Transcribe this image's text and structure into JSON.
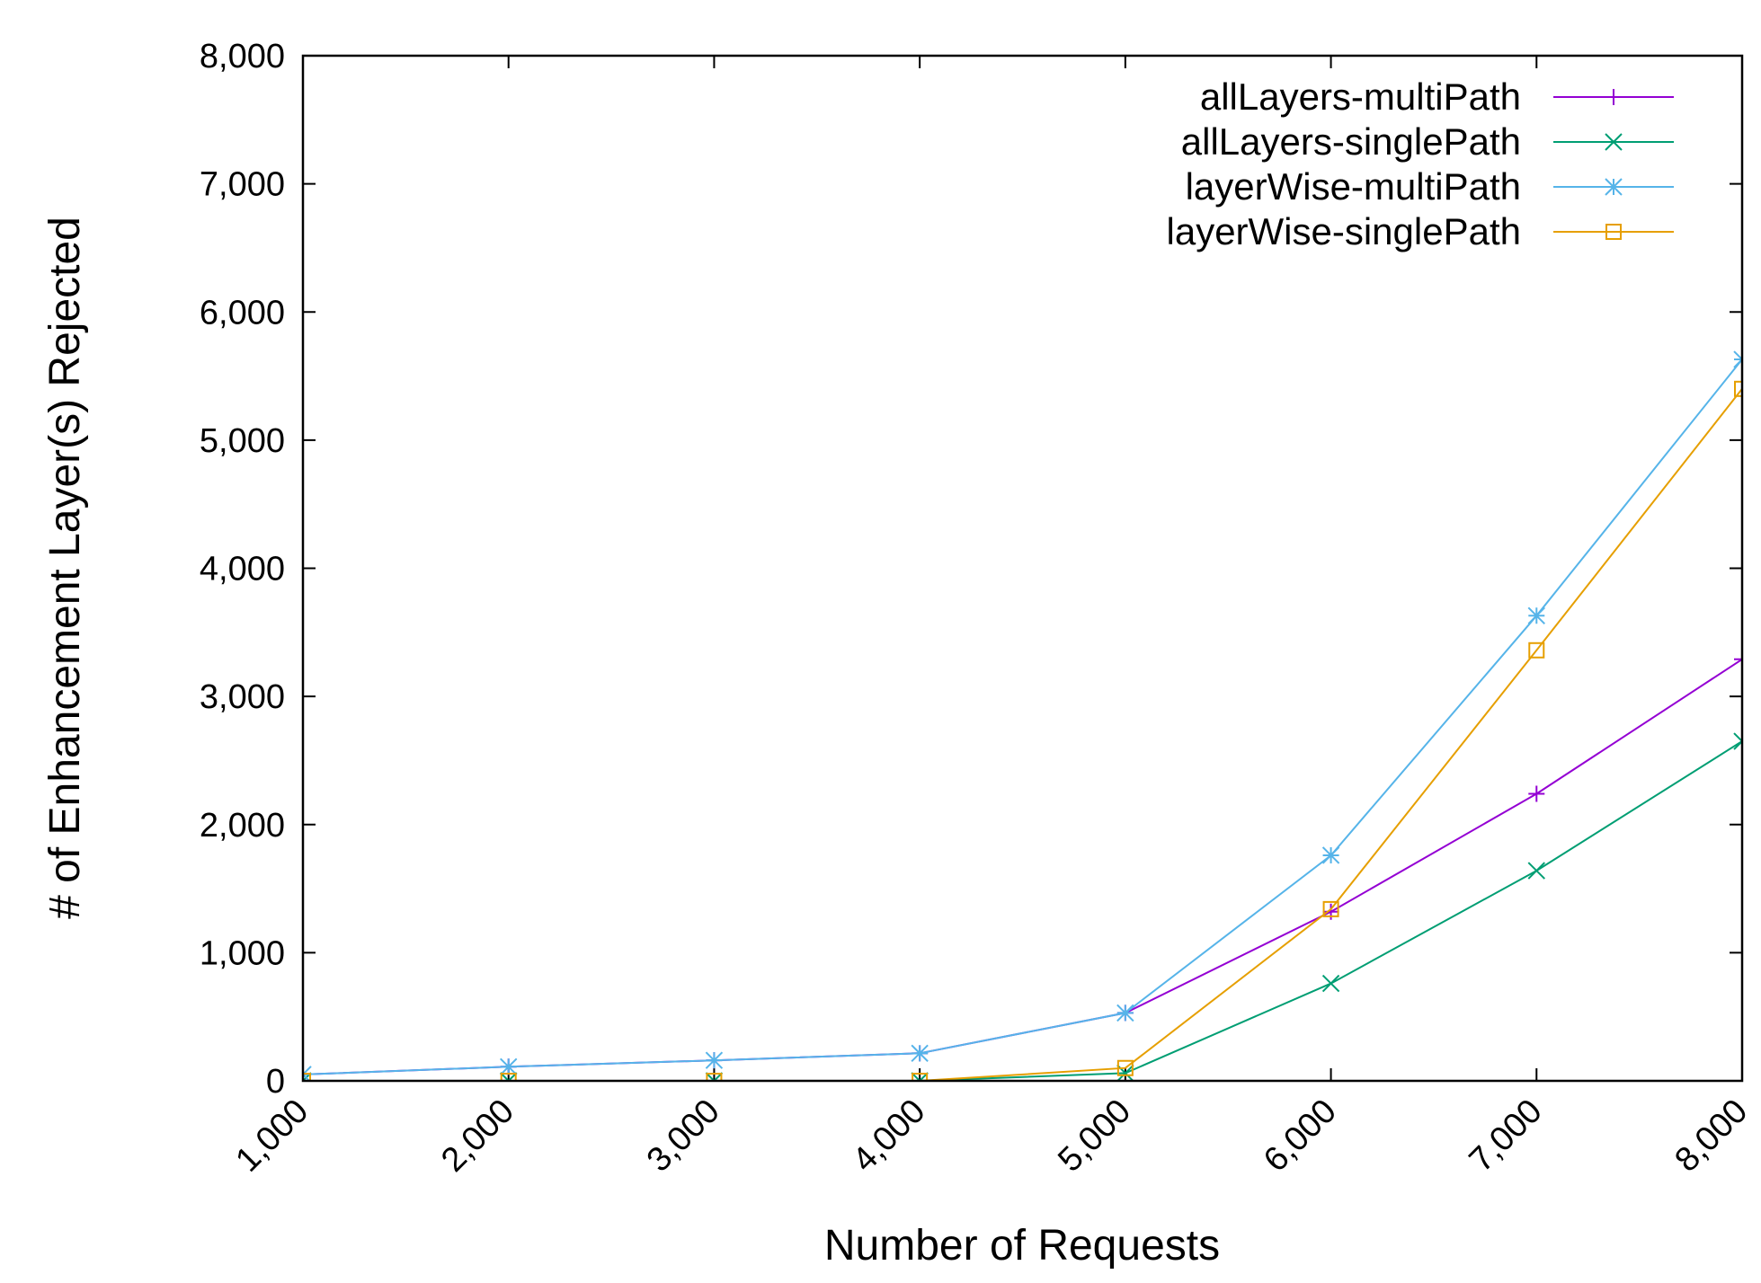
{
  "chart_data": {
    "type": "line",
    "xlabel": "Number of Requests",
    "ylabel": "# of Enhancement Layer(s) Rejected",
    "xlim": [
      1000,
      8000
    ],
    "ylim": [
      0,
      8000
    ],
    "x": [
      1000,
      2000,
      3000,
      4000,
      5000,
      6000,
      7000,
      8000
    ],
    "x_tick_labels": [
      "1,000",
      "2,000",
      "3,000",
      "4,000",
      "5,000",
      "6,000",
      "7,000",
      "8,000"
    ],
    "y_ticks": [
      0,
      1000,
      2000,
      3000,
      4000,
      5000,
      6000,
      7000,
      8000
    ],
    "y_tick_labels": [
      "0",
      "1,000",
      "2,000",
      "3,000",
      "4,000",
      "5,000",
      "6,000",
      "7,000",
      "8,000"
    ],
    "grid": false,
    "legend_position": "top-right",
    "series": [
      {
        "name": "allLayers-multiPath",
        "color": "#9400d3",
        "marker": "plus",
        "values": [
          50,
          110,
          160,
          215,
          530,
          1320,
          2240,
          3290
        ]
      },
      {
        "name": "allLayers-singlePath",
        "color": "#009e73",
        "marker": "cross",
        "values": [
          0,
          0,
          0,
          0,
          60,
          760,
          1640,
          2650
        ]
      },
      {
        "name": "layerWise-multiPath",
        "color": "#56b4e9",
        "marker": "star",
        "values": [
          50,
          110,
          160,
          215,
          530,
          1760,
          3630,
          5630
        ]
      },
      {
        "name": "layerWise-singlePath",
        "color": "#e69f00",
        "marker": "square",
        "values": [
          0,
          0,
          0,
          0,
          100,
          1340,
          3360,
          5400
        ]
      }
    ]
  }
}
